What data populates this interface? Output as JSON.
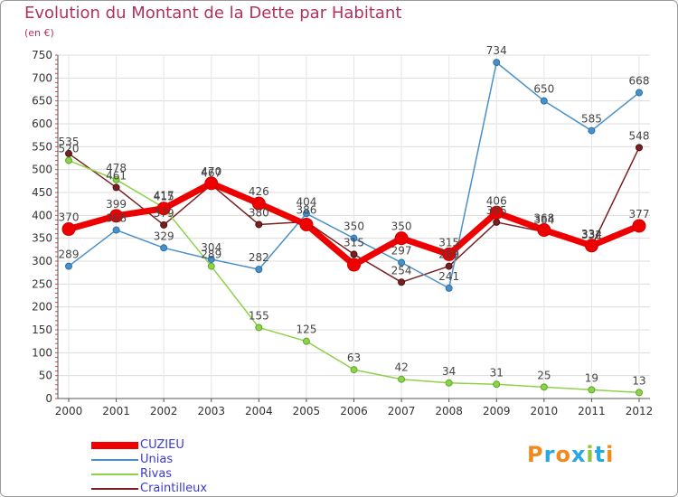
{
  "header": {
    "title": "Evolution du Montant de la Dette par Habitant",
    "subtitle": "(en €)"
  },
  "brand": {
    "name": "Proxiti",
    "letter_colors": [
      "#f08a1e",
      "#2aa7df",
      "#f08a1e",
      "#2aa7df",
      "#8dc63f",
      "#2aa7df",
      "#f08a1e"
    ]
  },
  "chart_data": {
    "type": "line",
    "title": "Evolution du Montant de la Dette par Habitant",
    "ylabel": "(en €)",
    "xlabel": "",
    "x": [
      "2000",
      "2001",
      "2002",
      "2003",
      "2004",
      "2005",
      "2006",
      "2007",
      "2008",
      "2009",
      "2010",
      "2011",
      "2012"
    ],
    "ylim": [
      0,
      750
    ],
    "yticks": [
      0,
      50,
      100,
      150,
      200,
      250,
      300,
      350,
      400,
      450,
      500,
      550,
      600,
      650,
      700,
      750
    ],
    "grid": true,
    "legend_position": "bottom-left",
    "series": [
      {
        "name": "CUZIEU",
        "color": "#ee0000",
        "values": [
          370,
          399,
          415,
          470,
          426,
          380,
          292,
          350,
          315,
          406,
          368,
          334,
          377
        ],
        "labels": [
          "370",
          "399",
          "415",
          "470",
          "426",
          "",
          "",
          "350",
          "315",
          "406",
          "368",
          "334",
          "377"
        ]
      },
      {
        "name": "Unias",
        "color": "#4a90c8",
        "values": [
          289,
          368,
          329,
          304,
          282,
          404,
          350,
          297,
          241,
          734,
          650,
          585,
          668
        ],
        "labels": [
          "289",
          "368",
          "329",
          "304",
          "282",
          "404",
          "350",
          "297",
          "241",
          "734",
          "650",
          "585",
          "668"
        ]
      },
      {
        "name": "Rivas",
        "color": "#8ed24a",
        "values": [
          520,
          478,
          417,
          289,
          155,
          125,
          63,
          42,
          34,
          31,
          25,
          19,
          13
        ],
        "labels": [
          "520",
          "478",
          "417",
          "289",
          "155",
          "125",
          "63",
          "42",
          "34",
          "31",
          "25",
          "19",
          "13"
        ]
      },
      {
        "name": "Craintilleux",
        "color": "#7a1f1f",
        "values": [
          535,
          461,
          379,
          467,
          380,
          386,
          315,
          254,
          289,
          385,
          364,
          332,
          548
        ],
        "labels": [
          "535",
          "461",
          "379",
          "467",
          "380",
          "386",
          "315",
          "254",
          "289",
          "385",
          "364",
          "332",
          "548"
        ]
      }
    ]
  }
}
